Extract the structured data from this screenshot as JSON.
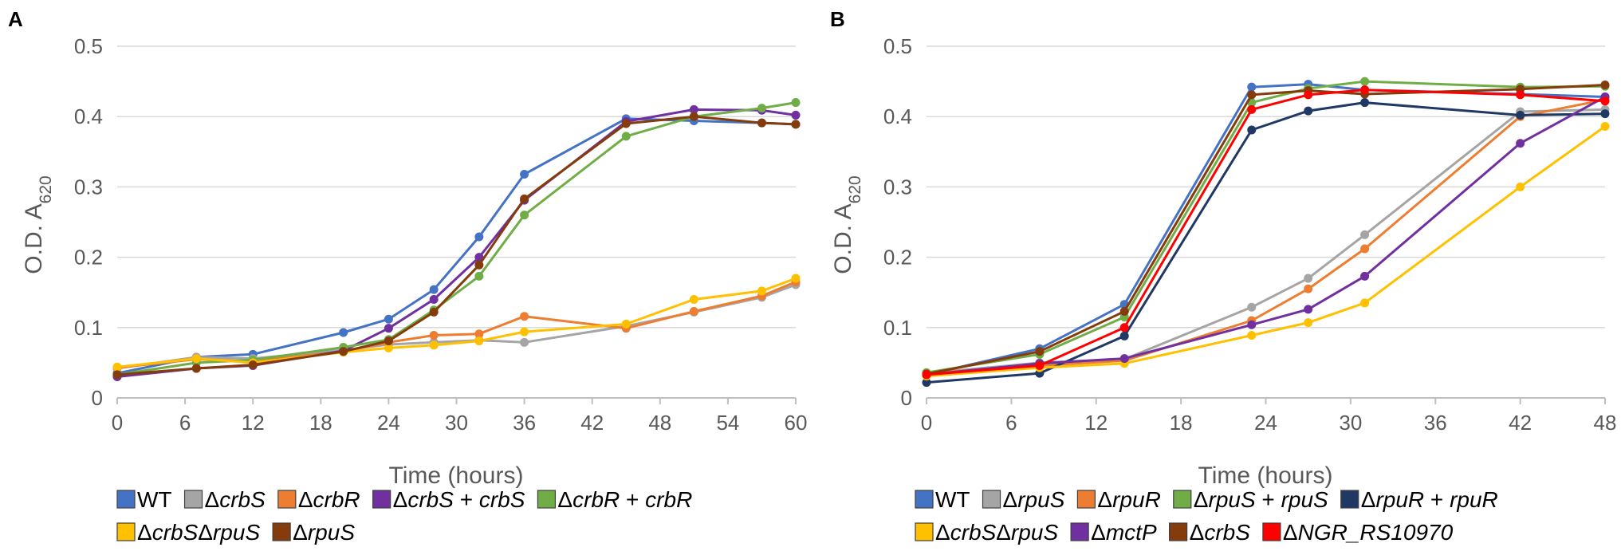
{
  "chart_data": [
    {
      "panel": "A",
      "type": "line",
      "xlabel": "Time (hours)",
      "ylabel": "O.D. A",
      "ylabel_sub": "620",
      "xlim": [
        0,
        60
      ],
      "ylim": [
        0,
        0.5
      ],
      "xticks": [
        0,
        6,
        12,
        18,
        24,
        30,
        36,
        42,
        48,
        54,
        60
      ],
      "yticks": [
        0,
        0.1,
        0.2,
        0.3,
        0.4,
        0.5
      ],
      "ytick_labels": [
        "0",
        "0.1",
        "0.2",
        "0.3",
        "0.4",
        "0.5"
      ],
      "grid": "horizontal",
      "legend_position": "bottom",
      "series": [
        {
          "name": "WT",
          "legend_parts": [
            {
              "t": "WT",
              "i": false
            }
          ],
          "color": "#4472C4",
          "x": [
            0,
            7,
            12,
            20,
            24,
            28,
            32,
            36,
            45,
            51,
            57,
            60
          ],
          "y": [
            0.035,
            0.058,
            0.062,
            0.093,
            0.112,
            0.154,
            0.229,
            0.318,
            0.397,
            0.394,
            0.391,
            0.389
          ]
        },
        {
          "name": "ΔcrbS",
          "legend_parts": [
            {
              "t": "Δ",
              "i": false
            },
            {
              "t": "crbS",
              "i": true
            }
          ],
          "color": "#A5A5A5",
          "x": [
            0,
            7,
            12,
            20,
            24,
            28,
            32,
            36,
            45,
            51,
            57,
            60
          ],
          "y": [
            0.042,
            0.058,
            0.056,
            0.068,
            0.076,
            0.079,
            0.082,
            0.079,
            0.102,
            0.122,
            0.143,
            0.161
          ]
        },
        {
          "name": "ΔcrbR",
          "legend_parts": [
            {
              "t": "Δ",
              "i": false
            },
            {
              "t": "crbR",
              "i": true
            }
          ],
          "color": "#ED7D31",
          "x": [
            0,
            7,
            12,
            20,
            24,
            28,
            32,
            36,
            45,
            51,
            57,
            60
          ],
          "y": [
            0.043,
            0.055,
            0.052,
            0.066,
            0.079,
            0.089,
            0.091,
            0.116,
            0.099,
            0.123,
            0.145,
            0.165
          ]
        },
        {
          "name": "ΔcrbS + crbS",
          "legend_parts": [
            {
              "t": "Δ",
              "i": false
            },
            {
              "t": "crbS",
              "i": true
            },
            {
              "t": " + ",
              "i": false
            },
            {
              "t": "crbS",
              "i": true
            }
          ],
          "color": "#7030A0",
          "x": [
            0,
            7,
            12,
            20,
            24,
            28,
            32,
            36,
            45,
            51,
            57,
            60
          ],
          "y": [
            0.03,
            0.042,
            0.046,
            0.067,
            0.099,
            0.14,
            0.2,
            0.281,
            0.393,
            0.41,
            0.409,
            0.402
          ]
        },
        {
          "name": "ΔcrbR + crbR",
          "legend_parts": [
            {
              "t": "Δ",
              "i": false
            },
            {
              "t": "crbR",
              "i": true
            },
            {
              "t": " + ",
              "i": false
            },
            {
              "t": "crbR",
              "i": true
            }
          ],
          "color": "#70AD47",
          "x": [
            0,
            7,
            12,
            20,
            24,
            28,
            32,
            36,
            45,
            51,
            57,
            60
          ],
          "y": [
            0.033,
            0.05,
            0.054,
            0.072,
            0.083,
            0.125,
            0.173,
            0.26,
            0.372,
            0.4,
            0.412,
            0.42
          ]
        },
        {
          "name": "ΔcrbSΔrpuS",
          "legend_parts": [
            {
              "t": "Δ",
              "i": false
            },
            {
              "t": "crbS",
              "i": true
            },
            {
              "t": "Δ",
              "i": false
            },
            {
              "t": "rpuS",
              "i": true
            }
          ],
          "color": "#FFC000",
          "x": [
            0,
            7,
            12,
            20,
            24,
            28,
            32,
            36,
            45,
            51,
            57,
            60
          ],
          "y": [
            0.044,
            0.056,
            0.05,
            0.065,
            0.071,
            0.075,
            0.081,
            0.094,
            0.105,
            0.14,
            0.152,
            0.17
          ]
        },
        {
          "name": "ΔrpuS",
          "legend_parts": [
            {
              "t": "Δ",
              "i": false
            },
            {
              "t": "rpuS",
              "i": true
            }
          ],
          "color": "#843C0C",
          "x": [
            0,
            7,
            12,
            20,
            24,
            28,
            32,
            36,
            45,
            51,
            57,
            60
          ],
          "y": [
            0.033,
            0.042,
            0.047,
            0.066,
            0.081,
            0.122,
            0.189,
            0.283,
            0.39,
            0.4,
            0.391,
            0.389
          ]
        }
      ]
    },
    {
      "panel": "B",
      "type": "line",
      "xlabel": "Time (hours)",
      "ylabel": "O.D. A",
      "ylabel_sub": "620",
      "xlim": [
        0,
        48
      ],
      "ylim": [
        0,
        0.5
      ],
      "xticks": [
        0,
        6,
        12,
        18,
        24,
        30,
        36,
        42,
        48
      ],
      "yticks": [
        0,
        0.1,
        0.2,
        0.3,
        0.4,
        0.5
      ],
      "ytick_labels": [
        "0",
        "0.1",
        "0.2",
        "0.3",
        "0.4",
        "0.5"
      ],
      "grid": "horizontal",
      "legend_position": "bottom",
      "series": [
        {
          "name": "WT",
          "legend_parts": [
            {
              "t": "WT",
              "i": false
            }
          ],
          "color": "#4472C4",
          "x": [
            0,
            8,
            14,
            23,
            27,
            31,
            42,
            48
          ],
          "y": [
            0.033,
            0.07,
            0.133,
            0.442,
            0.446,
            0.438,
            0.432,
            0.428
          ]
        },
        {
          "name": "ΔrpuS",
          "legend_parts": [
            {
              "t": "Δ",
              "i": false
            },
            {
              "t": "rpuS",
              "i": true
            }
          ],
          "color": "#A5A5A5",
          "x": [
            0,
            8,
            14,
            23,
            27,
            31,
            42,
            48
          ],
          "y": [
            0.035,
            0.05,
            0.055,
            0.129,
            0.17,
            0.232,
            0.407,
            0.41
          ]
        },
        {
          "name": "ΔrpuR",
          "legend_parts": [
            {
              "t": "Δ",
              "i": false
            },
            {
              "t": "rpuR",
              "i": true
            }
          ],
          "color": "#ED7D31",
          "x": [
            0,
            8,
            14,
            23,
            27,
            31,
            42,
            48
          ],
          "y": [
            0.035,
            0.046,
            0.053,
            0.11,
            0.155,
            0.212,
            0.4,
            0.424
          ]
        },
        {
          "name": "ΔrpuS + rpuS",
          "legend_parts": [
            {
              "t": "Δ",
              "i": false
            },
            {
              "t": "rpuS",
              "i": true
            },
            {
              "t": " + ",
              "i": false
            },
            {
              "t": "rpuS",
              "i": true
            }
          ],
          "color": "#70AD47",
          "x": [
            0,
            8,
            14,
            23,
            27,
            31,
            42,
            48
          ],
          "y": [
            0.036,
            0.062,
            0.115,
            0.42,
            0.44,
            0.45,
            0.442,
            0.443
          ]
        },
        {
          "name": "ΔrpuR + rpuR",
          "legend_parts": [
            {
              "t": "Δ",
              "i": false
            },
            {
              "t": "rpuR",
              "i": true
            },
            {
              "t": " + ",
              "i": false
            },
            {
              "t": "rpuR",
              "i": true
            }
          ],
          "color": "#1F3864",
          "x": [
            0,
            8,
            14,
            23,
            27,
            31,
            42,
            48
          ],
          "y": [
            0.022,
            0.035,
            0.088,
            0.381,
            0.408,
            0.42,
            0.402,
            0.404
          ]
        },
        {
          "name": "ΔcrbSΔrpuS",
          "legend_parts": [
            {
              "t": "Δ",
              "i": false
            },
            {
              "t": "crbS",
              "i": true
            },
            {
              "t": "Δ",
              "i": false
            },
            {
              "t": "rpuS",
              "i": true
            }
          ],
          "color": "#FFC000",
          "x": [
            0,
            8,
            14,
            23,
            27,
            31,
            42,
            48
          ],
          "y": [
            0.031,
            0.043,
            0.049,
            0.089,
            0.107,
            0.135,
            0.3,
            0.386
          ]
        },
        {
          "name": "ΔmctP",
          "legend_parts": [
            {
              "t": "Δ",
              "i": false
            },
            {
              "t": "mctP",
              "i": true
            }
          ],
          "color": "#7030A0",
          "x": [
            0,
            8,
            14,
            23,
            27,
            31,
            42,
            48
          ],
          "y": [
            0.033,
            0.049,
            0.056,
            0.104,
            0.126,
            0.173,
            0.362,
            0.428
          ]
        },
        {
          "name": "ΔcrbS",
          "legend_parts": [
            {
              "t": "Δ",
              "i": false
            },
            {
              "t": "crbS",
              "i": true
            }
          ],
          "color": "#843C0C",
          "x": [
            0,
            8,
            14,
            23,
            27,
            31,
            42,
            48
          ],
          "y": [
            0.034,
            0.066,
            0.123,
            0.431,
            0.437,
            0.432,
            0.439,
            0.445
          ]
        },
        {
          "name": "ΔNGR_RS10970",
          "legend_parts": [
            {
              "t": "Δ",
              "i": false
            },
            {
              "t": "NGR_RS10970",
              "i": true
            }
          ],
          "color": "#FF0000",
          "x": [
            0,
            8,
            14,
            23,
            27,
            31,
            42,
            48
          ],
          "y": [
            0.033,
            0.046,
            0.1,
            0.41,
            0.431,
            0.438,
            0.431,
            0.422
          ]
        }
      ]
    }
  ]
}
